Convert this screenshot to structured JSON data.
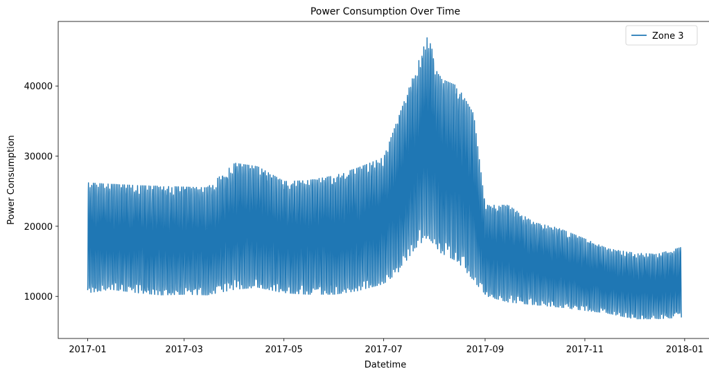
{
  "chart_data": {
    "type": "line",
    "title": "Power Consumption Over Time",
    "xlabel": "Datetime",
    "ylabel": "Power Consumption",
    "xlim": [
      "2016-12-14",
      "2018-01-18"
    ],
    "ylim": [
      4000,
      49200
    ],
    "x_ticks": [
      "2017-01",
      "2017-03",
      "2017-05",
      "2017-07",
      "2017-09",
      "2017-11",
      "2018-01"
    ],
    "y_ticks": [
      10000,
      20000,
      30000,
      40000
    ],
    "grid": false,
    "legend_position": "top-right",
    "series": [
      {
        "name": "Zone 3",
        "color": "#1f77b4",
        "x": [
          "2017-01-01",
          "2017-01-15",
          "2017-02-01",
          "2017-02-15",
          "2017-03-01",
          "2017-03-15",
          "2017-04-01",
          "2017-04-15",
          "2017-05-01",
          "2017-05-15",
          "2017-06-01",
          "2017-06-15",
          "2017-07-01",
          "2017-07-10",
          "2017-07-20",
          "2017-07-28",
          "2017-08-05",
          "2017-08-15",
          "2017-08-25",
          "2017-09-01",
          "2017-09-15",
          "2017-10-01",
          "2017-10-15",
          "2017-11-01",
          "2017-11-15",
          "2017-12-01",
          "2017-12-15",
          "2017-12-30"
        ],
        "daily_min": [
          10500,
          11000,
          10500,
          10200,
          10300,
          10200,
          11000,
          11300,
          10500,
          10300,
          10300,
          10800,
          11800,
          13500,
          16800,
          18500,
          16200,
          15000,
          12300,
          10100,
          9200,
          8800,
          8500,
          8000,
          7600,
          6800,
          6800,
          7000
        ],
        "daily_max": [
          26200,
          26000,
          25800,
          25700,
          25600,
          25500,
          29000,
          28500,
          26400,
          26500,
          27200,
          28300,
          29800,
          35500,
          42000,
          47200,
          41000,
          40000,
          36000,
          23000,
          23000,
          20500,
          19800,
          18200,
          16800,
          16200,
          16000,
          17000
        ]
      }
    ]
  }
}
